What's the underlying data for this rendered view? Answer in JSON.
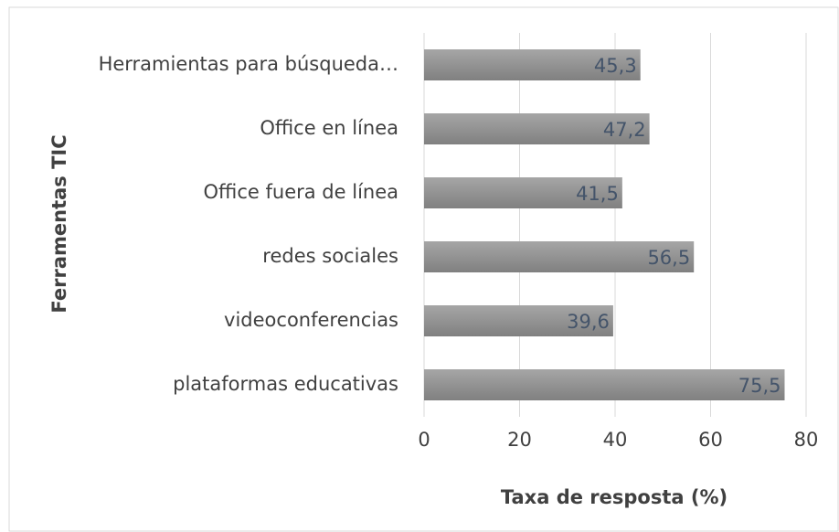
{
  "chart_data": {
    "type": "bar",
    "orientation": "horizontal",
    "categories": [
      "Herramientas para búsqueda…",
      "Office en línea",
      "Office fuera de línea",
      "redes sociales ",
      "videoconferencias",
      "plataformas educativas"
    ],
    "values": [
      45.3,
      47.2,
      41.5,
      56.5,
      39.6,
      75.5
    ],
    "value_labels": [
      "45,3",
      "47,2",
      "41,5",
      "56,5",
      "39,6",
      "75,5"
    ],
    "color": "#8c8c8c",
    "xlim": [
      0,
      80
    ],
    "xticks": [
      0,
      20,
      40,
      60,
      80
    ],
    "grid": true,
    "xlabel": "Taxa de resposta (%)",
    "ylabel": "Ferramentas TIC"
  }
}
